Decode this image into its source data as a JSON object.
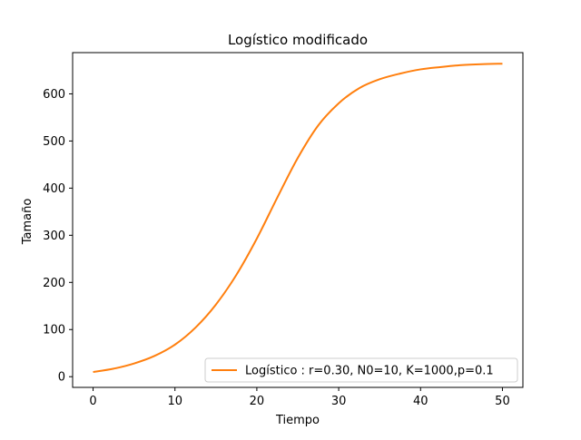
{
  "chart_data": {
    "type": "line",
    "title": "Logístico modificado",
    "xlabel": "Tiempo",
    "ylabel": "Tamaño",
    "xlim": [
      -2.5,
      52.5
    ],
    "ylim": [
      -22.7,
      687.5
    ],
    "xticks": [
      0,
      10,
      20,
      30,
      40,
      50
    ],
    "yticks": [
      0,
      100,
      200,
      300,
      400,
      500,
      600
    ],
    "grid": false,
    "legend_position": "lower-right",
    "series": [
      {
        "name": "Logístico : r=0.30, N0=10, K=1000,p=0.1",
        "color": "#ff7f0e",
        "x": [
          0,
          2.5,
          5,
          7.5,
          10,
          12.5,
          15,
          17.5,
          20,
          22.5,
          25,
          27.5,
          30,
          32.5,
          35,
          37.5,
          40,
          42.5,
          45,
          47.5,
          50
        ],
        "y": [
          10,
          17,
          28,
          44,
          68,
          104,
          153,
          216,
          293,
          380,
          464,
          533,
          580,
          612,
          631,
          643,
          652,
          657,
          661,
          663,
          664
        ]
      }
    ]
  }
}
